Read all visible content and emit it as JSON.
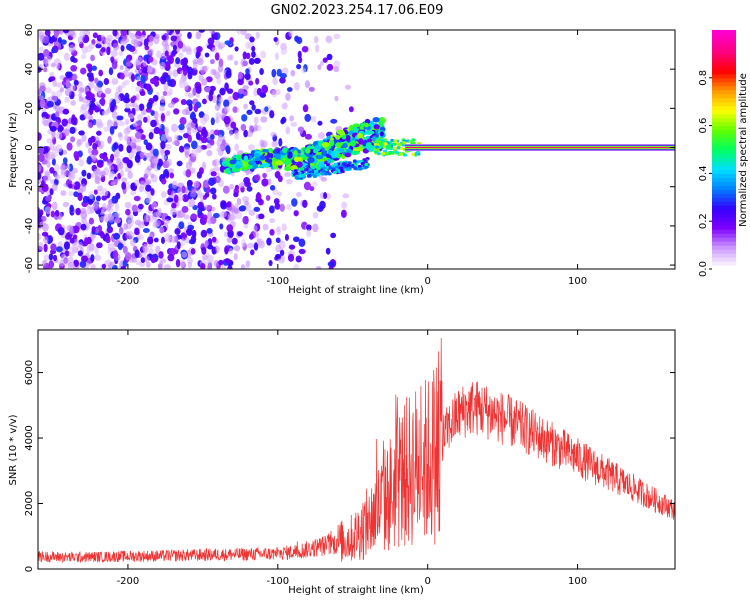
{
  "title": "GN02.2023.254.17.06.E09",
  "chart_data": [
    {
      "id": "spectrogram",
      "type": "heatmap",
      "xlabel": "Height of straight line (km)",
      "ylabel": "Frequency (Hz)",
      "xlim": [
        -260,
        165
      ],
      "ylim": [
        -62,
        60
      ],
      "xticks": [
        -200,
        -100,
        0,
        100
      ],
      "yticks": [
        -60,
        -40,
        -20,
        0,
        20,
        40,
        60
      ],
      "grid": false,
      "colorbar": {
        "label": "Normalized spectral amplitude",
        "range": [
          0.0,
          1.0
        ],
        "ticks": [
          0.0,
          0.2,
          0.4,
          0.6,
          0.8
        ],
        "tick_labels": [
          "0.0",
          "0.2",
          "0.4",
          "0.6",
          "0.8"
        ],
        "colormap": [
          "#ffffff",
          "#cc99ff",
          "#7f00ff",
          "#3300ff",
          "#0080ff",
          "#00e0ff",
          "#00ff60",
          "#60ff00",
          "#ffff00",
          "#ff9900",
          "#ff0000",
          "#ff0080",
          "#ff00cc"
        ]
      },
      "features": [
        {
          "name": "noise",
          "x_range": [
            -260,
            -80
          ],
          "y_range": [
            -62,
            60
          ],
          "amplitude": 0.2
        },
        {
          "name": "chirp",
          "x_range": [
            -135,
            -30
          ],
          "y_start": -10,
          "y_end": 6,
          "amplitude": 0.45
        },
        {
          "name": "carrier",
          "x_range": [
            -30,
            165
          ],
          "y": 0,
          "amplitude": 0.9
        }
      ]
    },
    {
      "id": "snr",
      "type": "line",
      "xlabel": "Height of straight line (km)",
      "ylabel": "SNR (10 * v/v)",
      "xlim": [
        -260,
        165
      ],
      "ylim": [
        0,
        7300
      ],
      "xticks": [
        -200,
        -100,
        0,
        100
      ],
      "yticks": [
        0,
        2000,
        4000,
        6000
      ],
      "grid": false,
      "color": "#ee3333",
      "series": [
        {
          "x": [
            -260,
            -240,
            -220,
            -200,
            -180,
            -160,
            -140,
            -120,
            -100,
            -90,
            -80,
            -70,
            -60,
            -50,
            -45,
            -40,
            -35,
            -30,
            -25,
            -20,
            -15,
            -10,
            -5,
            0,
            5,
            10,
            15,
            20,
            25,
            30,
            35,
            40,
            50,
            60,
            70,
            80,
            90,
            100,
            110,
            120,
            130,
            140,
            150,
            165
          ],
          "y": [
            380,
            360,
            370,
            390,
            400,
            420,
            440,
            450,
            470,
            520,
            600,
            700,
            800,
            950,
            1200,
            1400,
            1700,
            2000,
            2300,
            2600,
            2900,
            3100,
            3200,
            3300,
            3600,
            4000,
            4400,
            4700,
            4850,
            4950,
            4900,
            4800,
            4600,
            4400,
            4150,
            3900,
            3650,
            3400,
            3150,
            2900,
            2650,
            2400,
            2150,
            1800
          ]
        }
      ]
    }
  ]
}
